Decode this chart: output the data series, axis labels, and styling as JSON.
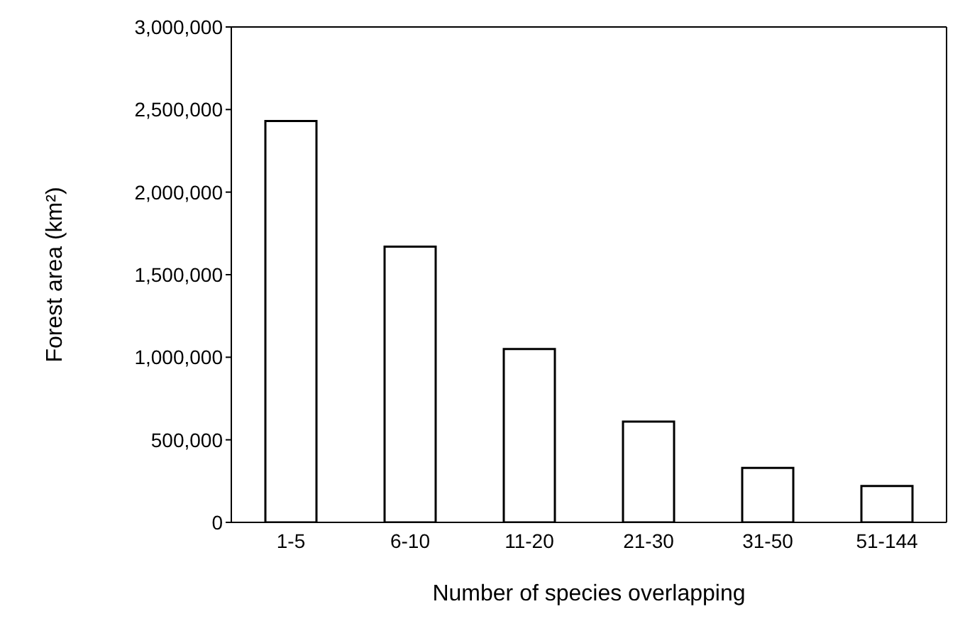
{
  "chart_data": {
    "type": "bar",
    "xlabel": "Number of species overlapping",
    "ylabel": "Forest area (km²)",
    "categories": [
      "1-5",
      "6-10",
      "11-20",
      "21-30",
      "31-50",
      "51-144"
    ],
    "values": [
      2430000,
      1670000,
      1050000,
      610000,
      330000,
      220000
    ],
    "color": "#ffffff",
    "ylim": [
      0,
      3000000
    ],
    "yticks": [
      0,
      {
        "value": 500000,
        "label": "500,000"
      },
      {
        "value": 1000000,
        "label": "1,000,000"
      },
      {
        "value": 1500000,
        "label": "1,500,000"
      },
      {
        "value": 2000000,
        "label": "2,000,000"
      },
      {
        "value": 2500000,
        "label": "2,500,000"
      },
      {
        "value": 3000000,
        "label": "3,000,000"
      }
    ]
  }
}
